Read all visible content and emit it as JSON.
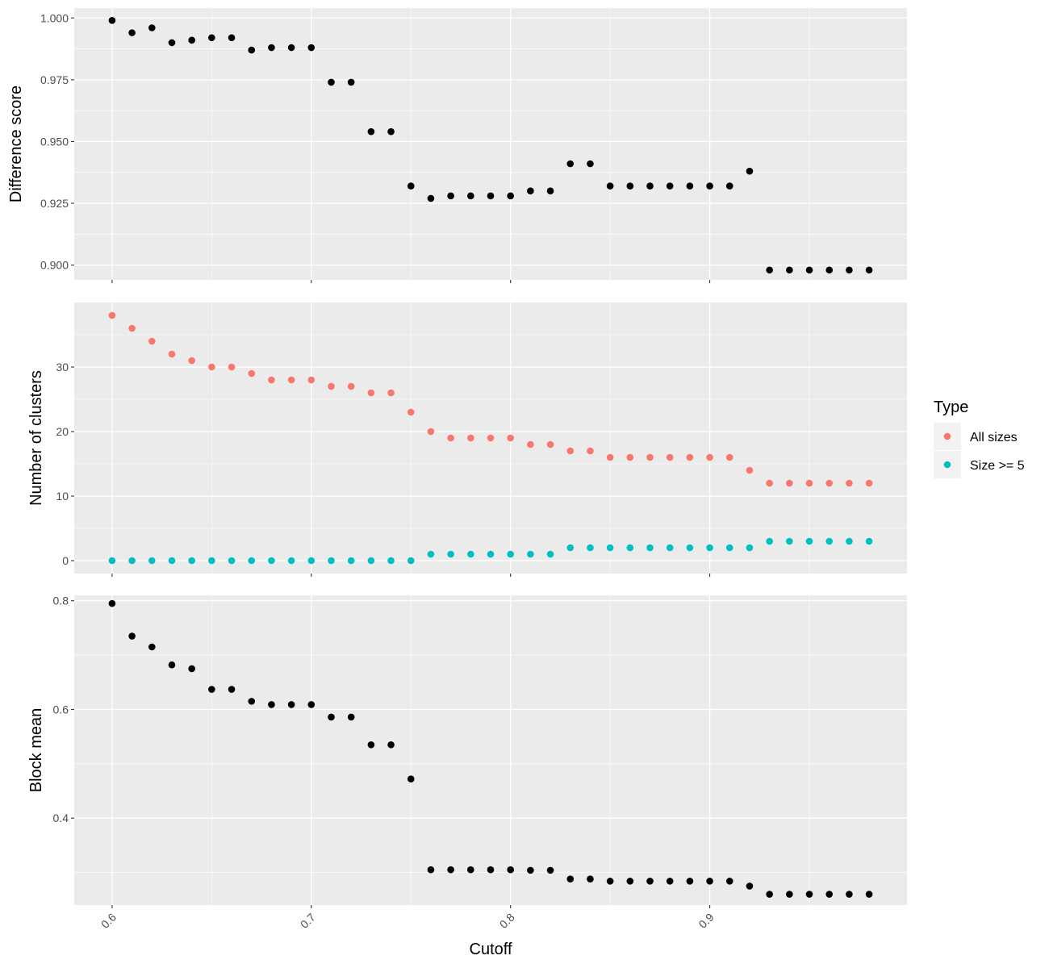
{
  "chart_data": [
    {
      "type": "scatter",
      "ylabel": "Difference score",
      "ylim": [
        0.894,
        1.004
      ],
      "yticks": [
        "1.000",
        "0.975",
        "0.950",
        "0.925",
        "0.900"
      ],
      "series": [
        {
          "x": [
            0.6,
            0.61,
            0.62,
            0.63,
            0.64,
            0.65,
            0.66,
            0.67,
            0.68,
            0.69,
            0.7,
            0.71,
            0.72,
            0.73,
            0.74,
            0.75,
            0.76,
            0.77,
            0.78,
            0.79,
            0.8,
            0.81,
            0.82,
            0.83,
            0.84,
            0.85,
            0.86,
            0.87,
            0.88,
            0.89,
            0.9,
            0.91,
            0.92,
            0.93,
            0.94,
            0.95,
            0.96,
            0.97,
            0.98
          ],
          "y": [
            0.999,
            0.994,
            0.996,
            0.99,
            0.991,
            0.992,
            0.992,
            0.987,
            0.988,
            0.988,
            0.988,
            0.974,
            0.974,
            0.954,
            0.954,
            0.932,
            0.927,
            0.928,
            0.928,
            0.928,
            0.928,
            0.93,
            0.93,
            0.941,
            0.941,
            0.932,
            0.932,
            0.932,
            0.932,
            0.932,
            0.932,
            0.932,
            0.938,
            0.898,
            0.898,
            0.898,
            0.898,
            0.898,
            0.898
          ],
          "color": "#000000"
        }
      ]
    },
    {
      "type": "scatter",
      "ylabel": "Number of clusters",
      "ylim": [
        -2,
        40
      ],
      "yticks": [
        "30",
        "20",
        "10",
        "0"
      ],
      "series": [
        {
          "name": "All sizes",
          "color": "#F8766D",
          "x": [
            0.6,
            0.61,
            0.62,
            0.63,
            0.64,
            0.65,
            0.66,
            0.67,
            0.68,
            0.69,
            0.7,
            0.71,
            0.72,
            0.73,
            0.74,
            0.75,
            0.76,
            0.77,
            0.78,
            0.79,
            0.8,
            0.81,
            0.82,
            0.83,
            0.84,
            0.85,
            0.86,
            0.87,
            0.88,
            0.89,
            0.9,
            0.91,
            0.92,
            0.93,
            0.94,
            0.95,
            0.96,
            0.97,
            0.98
          ],
          "y": [
            38,
            36,
            34,
            32,
            31,
            30,
            30,
            29,
            28,
            28,
            28,
            27,
            27,
            26,
            26,
            23,
            20,
            19,
            19,
            19,
            19,
            18,
            18,
            17,
            17,
            16,
            16,
            16,
            16,
            16,
            16,
            16,
            14,
            12,
            12,
            12,
            12,
            12,
            12
          ]
        },
        {
          "name": "Size >= 5",
          "color": "#00BFC4",
          "x": [
            0.6,
            0.61,
            0.62,
            0.63,
            0.64,
            0.65,
            0.66,
            0.67,
            0.68,
            0.69,
            0.7,
            0.71,
            0.72,
            0.73,
            0.74,
            0.75,
            0.76,
            0.77,
            0.78,
            0.79,
            0.8,
            0.81,
            0.82,
            0.83,
            0.84,
            0.85,
            0.86,
            0.87,
            0.88,
            0.89,
            0.9,
            0.91,
            0.92,
            0.93,
            0.94,
            0.95,
            0.96,
            0.97,
            0.98
          ],
          "y": [
            0,
            0,
            0,
            0,
            0,
            0,
            0,
            0,
            0,
            0,
            0,
            0,
            0,
            0,
            0,
            0,
            1,
            1,
            1,
            1,
            1,
            1,
            1,
            2,
            2,
            2,
            2,
            2,
            2,
            2,
            2,
            2,
            2,
            3,
            3,
            3,
            3,
            3,
            3
          ]
        }
      ]
    },
    {
      "type": "scatter",
      "ylabel": "Block mean",
      "ylim": [
        0.24,
        0.81
      ],
      "yticks": [
        "0.8",
        "0.6",
        "0.4"
      ],
      "series": [
        {
          "x": [
            0.6,
            0.61,
            0.62,
            0.63,
            0.64,
            0.65,
            0.66,
            0.67,
            0.68,
            0.69,
            0.7,
            0.71,
            0.72,
            0.73,
            0.74,
            0.75,
            0.76,
            0.77,
            0.78,
            0.79,
            0.8,
            0.81,
            0.82,
            0.83,
            0.84,
            0.85,
            0.86,
            0.87,
            0.88,
            0.89,
            0.9,
            0.91,
            0.92,
            0.93,
            0.94,
            0.95,
            0.96,
            0.97,
            0.98
          ],
          "y": [
            0.795,
            0.735,
            0.715,
            0.682,
            0.675,
            0.637,
            0.637,
            0.615,
            0.609,
            0.609,
            0.609,
            0.586,
            0.586,
            0.535,
            0.535,
            0.472,
            0.305,
            0.305,
            0.305,
            0.305,
            0.305,
            0.304,
            0.304,
            0.288,
            0.288,
            0.284,
            0.284,
            0.284,
            0.284,
            0.284,
            0.284,
            0.284,
            0.275,
            0.26,
            0.26,
            0.26,
            0.26,
            0.26,
            0.26
          ],
          "color": "#000000"
        }
      ]
    }
  ],
  "x_axis": {
    "xlabel": "Cutoff",
    "xlim": [
      0.581,
      0.999
    ],
    "ticks": [
      "0.6",
      "0.7",
      "0.8",
      "0.9"
    ]
  },
  "legend": {
    "title": "Type",
    "placement": "right",
    "items": [
      {
        "label": "All sizes",
        "color": "#F8766D"
      },
      {
        "label": "Size >= 5",
        "color": "#00BFC4"
      }
    ]
  },
  "colors": {
    "panel_background": "#EBEBEB",
    "grid": "#FFFFFF",
    "tick_text": "#4D4D4D"
  }
}
